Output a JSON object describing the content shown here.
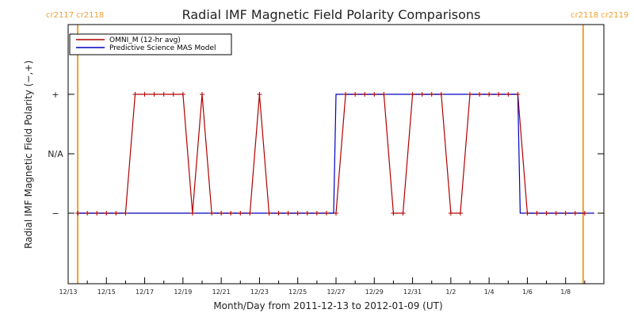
{
  "chart_data": {
    "type": "line",
    "title": "Radial IMF Magnetic Field Polarity Comparisons",
    "xlabel": "Month/Day from 2011-12-13 to 2012-01-09 (UT)",
    "ylabel": "Radial IMF Magnetic Field Polarity (−,+)",
    "x_start": "2011-12-13",
    "x_end": "2012-01-09",
    "x_tick_labels": [
      "12/13",
      "12/15",
      "12/17",
      "12/19",
      "12/21",
      "12/23",
      "12/25",
      "12/27",
      "12/29",
      "12/31",
      "1/2",
      "1/4",
      "1/6",
      "1/8"
    ],
    "y_categories": [
      "−",
      "N/A",
      "+"
    ],
    "carrington_markers": [
      {
        "date": "2011-12-13T12:00",
        "labels": [
          "cr2117",
          "cr2118"
        ],
        "color": "#f0a030"
      },
      {
        "date": "2012-01-08T22:00",
        "labels": [
          "cr2118",
          "cr2119"
        ],
        "color": "#f0a030"
      }
    ],
    "legend": {
      "placement": "top-left"
    },
    "series": [
      {
        "name": "OMNI_M (12-hr avg)",
        "color": "#b00000",
        "markers": true,
        "points": [
          [
            "2011-12-13T12:00",
            "−"
          ],
          [
            "2011-12-14T00:00",
            "−"
          ],
          [
            "2011-12-14T12:00",
            "−"
          ],
          [
            "2011-12-15T00:00",
            "−"
          ],
          [
            "2011-12-15T12:00",
            "−"
          ],
          [
            "2011-12-16T00:00",
            "−"
          ],
          [
            "2011-12-16T12:00",
            "+"
          ],
          [
            "2011-12-17T00:00",
            "+"
          ],
          [
            "2011-12-17T12:00",
            "+"
          ],
          [
            "2011-12-18T00:00",
            "+"
          ],
          [
            "2011-12-18T12:00",
            "+"
          ],
          [
            "2011-12-19T00:00",
            "+"
          ],
          [
            "2011-12-19T12:00",
            "−"
          ],
          [
            "2011-12-20T00:00",
            "+"
          ],
          [
            "2011-12-20T12:00",
            "−"
          ],
          [
            "2011-12-21T00:00",
            "−"
          ],
          [
            "2011-12-21T12:00",
            "−"
          ],
          [
            "2011-12-22T00:00",
            "−"
          ],
          [
            "2011-12-22T12:00",
            "−"
          ],
          [
            "2011-12-23T00:00",
            "+"
          ],
          [
            "2011-12-23T12:00",
            "−"
          ],
          [
            "2011-12-24T00:00",
            "−"
          ],
          [
            "2011-12-24T12:00",
            "−"
          ],
          [
            "2011-12-25T00:00",
            "−"
          ],
          [
            "2011-12-25T12:00",
            "−"
          ],
          [
            "2011-12-26T00:00",
            "−"
          ],
          [
            "2011-12-26T12:00",
            "−"
          ],
          [
            "2011-12-27T00:00",
            "−"
          ],
          [
            "2011-12-27T12:00",
            "+"
          ],
          [
            "2011-12-28T00:00",
            "+"
          ],
          [
            "2011-12-28T12:00",
            "+"
          ],
          [
            "2011-12-29T00:00",
            "+"
          ],
          [
            "2011-12-29T12:00",
            "+"
          ],
          [
            "2011-12-30T00:00",
            "−"
          ],
          [
            "2011-12-30T12:00",
            "−"
          ],
          [
            "2011-12-31T00:00",
            "+"
          ],
          [
            "2011-12-31T12:00",
            "+"
          ],
          [
            "2012-01-01T00:00",
            "+"
          ],
          [
            "2012-01-01T12:00",
            "+"
          ],
          [
            "2012-01-02T00:00",
            "−"
          ],
          [
            "2012-01-02T12:00",
            "−"
          ],
          [
            "2012-01-03T00:00",
            "+"
          ],
          [
            "2012-01-03T12:00",
            "+"
          ],
          [
            "2012-01-04T00:00",
            "+"
          ],
          [
            "2012-01-04T12:00",
            "+"
          ],
          [
            "2012-01-05T00:00",
            "+"
          ],
          [
            "2012-01-05T12:00",
            "+"
          ],
          [
            "2012-01-06T00:00",
            "−"
          ],
          [
            "2012-01-06T12:00",
            "−"
          ],
          [
            "2012-01-07T00:00",
            "−"
          ],
          [
            "2012-01-07T12:00",
            "−"
          ],
          [
            "2012-01-08T00:00",
            "−"
          ],
          [
            "2012-01-08T12:00",
            "−"
          ],
          [
            "2012-01-09T00:00",
            "−"
          ]
        ]
      },
      {
        "name": "Predictive Science MAS Model",
        "color": "#0000c0",
        "markers": false,
        "points": [
          [
            "2011-12-13T12:00",
            "−"
          ],
          [
            "2011-12-26T21:00",
            "−"
          ],
          [
            "2011-12-27T00:00",
            "+"
          ],
          [
            "2012-01-05T12:00",
            "+"
          ],
          [
            "2012-01-05T15:00",
            "−"
          ],
          [
            "2012-01-09T12:00",
            "−"
          ]
        ]
      }
    ]
  }
}
